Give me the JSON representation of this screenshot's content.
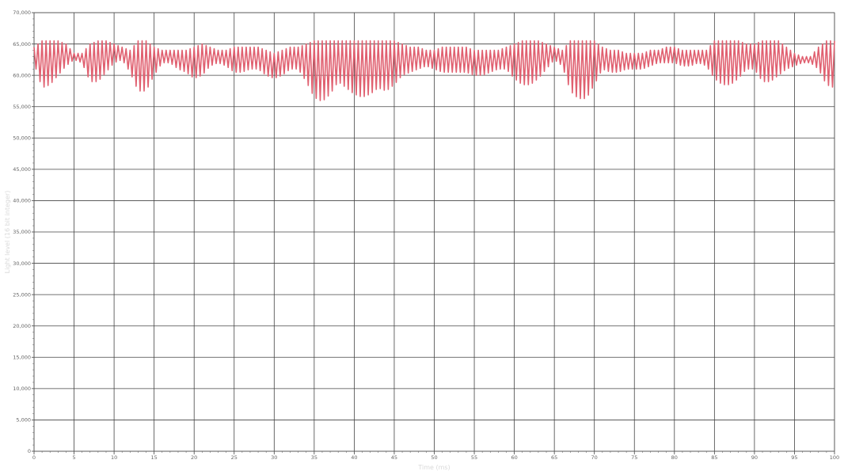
{
  "chart_data": {
    "type": "line",
    "xlabel": "Time (ms)",
    "ylabel": "Light level (16 bit integer)",
    "xlim": [
      0,
      100
    ],
    "ylim": [
      0,
      70000
    ],
    "x_ticks": [
      0,
      5,
      10,
      15,
      20,
      25,
      30,
      35,
      40,
      45,
      50,
      55,
      60,
      65,
      70,
      75,
      80,
      85,
      90,
      95,
      100
    ],
    "x_tick_labels": [
      "0",
      "5",
      "10",
      "15",
      "20",
      "25",
      "30",
      "35",
      "40",
      "45",
      "50",
      "55",
      "60",
      "65",
      "70",
      "75",
      "80",
      "85",
      "90",
      "95",
      "100"
    ],
    "y_ticks": [
      0,
      5000,
      10000,
      15000,
      20000,
      25000,
      30000,
      35000,
      40000,
      45000,
      50000,
      55000,
      60000,
      65000,
      70000
    ],
    "y_tick_labels": [
      "0",
      "5,000",
      "10,000",
      "15,000",
      "20,000",
      "25,000",
      "30,000",
      "35,000",
      "40,000",
      "45,000",
      "50,000",
      "55,000",
      "60,000",
      "65,000",
      "70,000"
    ],
    "grid": true,
    "line_color": "#e06070",
    "series_envelope": {
      "x": [
        0,
        1,
        2,
        3,
        4,
        5,
        6,
        7,
        8,
        9,
        10,
        11,
        12,
        13,
        14,
        15,
        16,
        17,
        18,
        19,
        20,
        21,
        22,
        23,
        24,
        25,
        26,
        27,
        28,
        29,
        30,
        31,
        32,
        33,
        34,
        35,
        36,
        37,
        38,
        39,
        40,
        41,
        42,
        43,
        44,
        45,
        46,
        47,
        48,
        49,
        50,
        51,
        52,
        53,
        54,
        55,
        56,
        57,
        58,
        59,
        60,
        61,
        62,
        63,
        64,
        65,
        66,
        67,
        68,
        69,
        70,
        71,
        72,
        73,
        74,
        75,
        76,
        77,
        78,
        79,
        80,
        81,
        82,
        83,
        84,
        85,
        86,
        87,
        88,
        89,
        90,
        91,
        92,
        93,
        94,
        95,
        96,
        97,
        98,
        99,
        100
      ],
      "high": [
        64500,
        65500,
        65500,
        65500,
        65000,
        63500,
        63500,
        65000,
        65500,
        65500,
        65000,
        64500,
        64000,
        65500,
        65500,
        64500,
        64000,
        64000,
        64000,
        64000,
        64500,
        65000,
        64500,
        64000,
        64000,
        64500,
        64500,
        64500,
        64500,
        64000,
        63500,
        64000,
        64500,
        64500,
        65000,
        65500,
        65500,
        65500,
        65500,
        65500,
        65500,
        65500,
        65500,
        65500,
        65500,
        65500,
        65000,
        64500,
        64500,
        64000,
        64000,
        64500,
        64500,
        64500,
        64500,
        64000,
        64000,
        64000,
        64000,
        64500,
        65000,
        65500,
        65500,
        65500,
        65000,
        64500,
        64000,
        65500,
        65500,
        65500,
        65500,
        64500,
        64000,
        64000,
        63500,
        63500,
        63500,
        64000,
        64000,
        64500,
        64500,
        64000,
        64000,
        64000,
        64000,
        65500,
        65500,
        65500,
        65500,
        65000,
        65000,
        65500,
        65500,
        65500,
        64500,
        63500,
        63000,
        63000,
        64500,
        65500,
        65500
      ],
      "low": [
        62000,
        58000,
        58500,
        60000,
        61500,
        62500,
        62000,
        59000,
        59000,
        60500,
        62000,
        62500,
        60500,
        57500,
        57500,
        60000,
        62000,
        62000,
        61000,
        60500,
        59500,
        60000,
        61500,
        62000,
        61500,
        60500,
        60500,
        61000,
        61000,
        60000,
        59500,
        60000,
        61000,
        61000,
        59000,
        56500,
        55800,
        57000,
        59000,
        58000,
        57000,
        56500,
        57000,
        58000,
        57500,
        58500,
        60000,
        60500,
        61000,
        61500,
        61000,
        60500,
        60500,
        60500,
        60500,
        60000,
        60000,
        60500,
        61000,
        61000,
        59500,
        58500,
        58500,
        59500,
        61000,
        62500,
        61500,
        57500,
        56300,
        56300,
        58500,
        61000,
        60500,
        60500,
        61000,
        61000,
        61000,
        61500,
        62000,
        62000,
        62000,
        61500,
        61500,
        62000,
        61500,
        59500,
        58500,
        58500,
        59500,
        61000,
        61000,
        59000,
        59000,
        60000,
        61000,
        61500,
        62000,
        62000,
        61000,
        58500,
        58000
      ],
      "oscillation_period": 0.5
    }
  }
}
